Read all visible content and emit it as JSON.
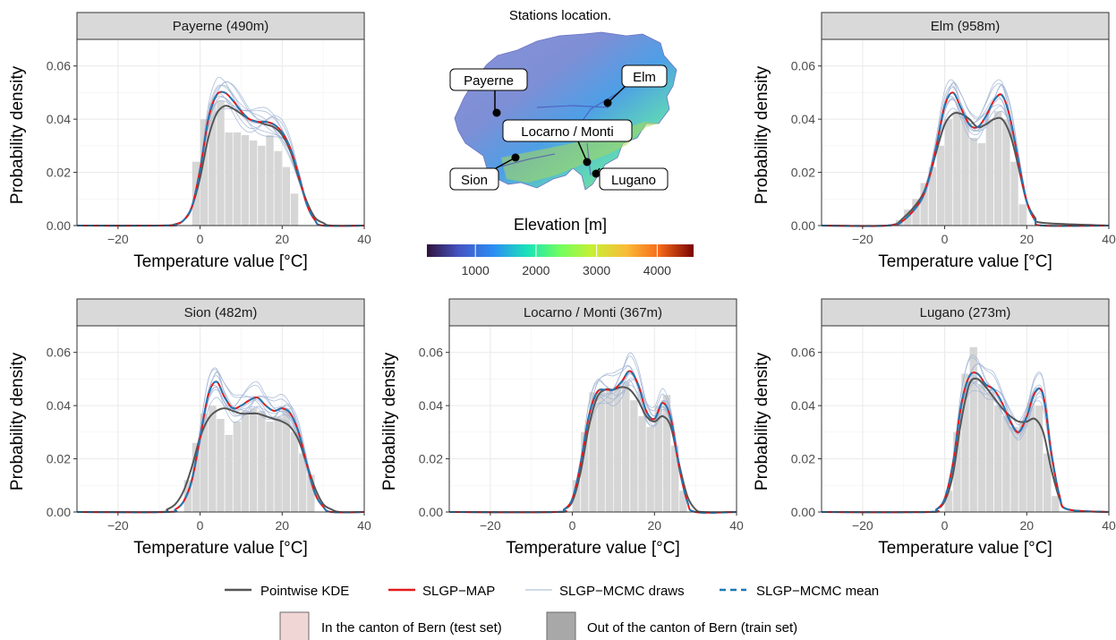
{
  "colors": {
    "kde": "#555555",
    "map": "#e31a1c",
    "draws": "#9fb3d3",
    "mean": "#1f78b4",
    "hist_train": "#d6d6d6",
    "test_fill": "#f0d6d4",
    "strip": "#d9d9d9",
    "grid": "#ebebeb"
  },
  "legend": {
    "kde": "Pointwise KDE",
    "map": "SLGP−MAP",
    "draws": "SLGP−MCMC draws",
    "mean": "SLGP−MCMC mean",
    "test": "In the canton of Bern (test set)",
    "train": "Out of the canton of Bern (train set)"
  },
  "map_panel": {
    "title": "Stations location.",
    "colorbar_title": "Elevation [m]",
    "colorbar_ticks": [
      "1000",
      "2000",
      "3000",
      "4000"
    ],
    "colorbar_range": [
      200,
      4600
    ],
    "stations": [
      "Payerne",
      "Elm",
      "Locarno / Monti",
      "Sion",
      "Lugano"
    ]
  },
  "chart_data": [
    {
      "type": "line",
      "title": "Payerne (490m)",
      "xlabel": "Temperature value [°C]",
      "ylabel": "Probability density",
      "xlim": [
        -30,
        40
      ],
      "ylim": [
        0,
        0.07
      ],
      "xticks": [
        -20,
        0,
        20,
        40
      ],
      "yticks": [
        "0.00",
        "0.02",
        "0.04",
        "0.06"
      ],
      "hist": {
        "bin_width": 2,
        "bins": [
          [
            -1,
            0.024
          ],
          [
            1,
            0.04
          ],
          [
            3,
            0.046
          ],
          [
            5,
            0.047
          ],
          [
            7,
            0.035
          ],
          [
            9,
            0.035
          ],
          [
            11,
            0.034
          ],
          [
            13,
            0.032
          ],
          [
            15,
            0.03
          ],
          [
            17,
            0.034
          ],
          [
            19,
            0.028
          ],
          [
            21,
            0.022
          ],
          [
            23,
            0.012
          ]
        ]
      },
      "series": [
        {
          "name": "Pointwise KDE",
          "x": [
            -30,
            -10,
            -6,
            -4,
            -2,
            0,
            2,
            4,
            6,
            8,
            10,
            12,
            14,
            16,
            18,
            20,
            22,
            24,
            26,
            28,
            30,
            32,
            40
          ],
          "y": [
            0,
            0,
            0.0005,
            0.002,
            0.007,
            0.018,
            0.033,
            0.042,
            0.045,
            0.044,
            0.042,
            0.04,
            0.039,
            0.038,
            0.037,
            0.034,
            0.028,
            0.018,
            0.009,
            0.003,
            0.001,
            0,
            0
          ]
        },
        {
          "name": "SLGP−MAP",
          "x": [
            -30,
            -8,
            -6,
            -4,
            -2,
            0,
            2,
            4,
            6,
            8,
            10,
            12,
            14,
            16,
            18,
            20,
            22,
            24,
            26,
            28,
            30,
            40
          ],
          "y": [
            0,
            0,
            0.0005,
            0.002,
            0.007,
            0.021,
            0.04,
            0.049,
            0.05,
            0.047,
            0.043,
            0.04,
            0.039,
            0.039,
            0.038,
            0.035,
            0.029,
            0.019,
            0.008,
            0.002,
            0,
            0
          ]
        }
      ]
    },
    {
      "type": "line",
      "title": "Elm (958m)",
      "xlabel": "Temperature value [°C]",
      "ylabel": "Probability density",
      "xlim": [
        -30,
        40
      ],
      "ylim": [
        0,
        0.07
      ],
      "xticks": [
        -20,
        0,
        20,
        40
      ],
      "yticks": [
        "0.00",
        "0.02",
        "0.04",
        "0.06"
      ],
      "hist": {
        "bin_width": 2,
        "bins": [
          [
            -11,
            0.002
          ],
          [
            -9,
            0.006
          ],
          [
            -7,
            0.01
          ],
          [
            -5,
            0.016
          ],
          [
            -3,
            0.022
          ],
          [
            -1,
            0.03
          ],
          [
            1,
            0.04
          ],
          [
            3,
            0.043
          ],
          [
            5,
            0.041
          ],
          [
            7,
            0.033
          ],
          [
            9,
            0.031
          ],
          [
            11,
            0.04
          ],
          [
            13,
            0.043
          ],
          [
            15,
            0.04
          ],
          [
            17,
            0.024
          ],
          [
            19,
            0.008
          ]
        ]
      },
      "series": [
        {
          "name": "Pointwise KDE",
          "x": [
            -30,
            -14,
            -10,
            -6,
            -4,
            -2,
            0,
            2,
            4,
            6,
            8,
            10,
            12,
            14,
            16,
            18,
            20,
            22,
            24,
            40
          ],
          "y": [
            0,
            0,
            0.003,
            0.01,
            0.017,
            0.028,
            0.038,
            0.042,
            0.042,
            0.04,
            0.037,
            0.038,
            0.04,
            0.04,
            0.034,
            0.022,
            0.009,
            0.003,
            0.001,
            0
          ]
        },
        {
          "name": "SLGP−MAP",
          "x": [
            -30,
            -14,
            -10,
            -6,
            -4,
            -2,
            0,
            2,
            4,
            6,
            8,
            10,
            12,
            14,
            16,
            18,
            20,
            22,
            24,
            40
          ],
          "y": [
            0,
            0,
            0.002,
            0.009,
            0.017,
            0.03,
            0.045,
            0.05,
            0.044,
            0.038,
            0.037,
            0.041,
            0.047,
            0.049,
            0.04,
            0.024,
            0.009,
            0.002,
            0,
            0
          ]
        }
      ]
    },
    {
      "type": "line",
      "title": "Sion (482m)",
      "xlabel": "Temperature value [°C]",
      "ylabel": "Probability density",
      "xlim": [
        -30,
        40
      ],
      "ylim": [
        0,
        0.07
      ],
      "xticks": [
        -20,
        0,
        20,
        40
      ],
      "yticks": [
        "0.00",
        "0.02",
        "0.04",
        "0.06"
      ],
      "hist": {
        "bin_width": 2,
        "bins": [
          [
            -3,
            0.012
          ],
          [
            -1,
            0.026
          ],
          [
            1,
            0.037
          ],
          [
            3,
            0.04
          ],
          [
            5,
            0.035
          ],
          [
            7,
            0.029
          ],
          [
            9,
            0.034
          ],
          [
            11,
            0.038
          ],
          [
            13,
            0.039
          ],
          [
            15,
            0.038
          ],
          [
            17,
            0.034
          ],
          [
            19,
            0.036
          ],
          [
            21,
            0.039
          ],
          [
            23,
            0.03
          ],
          [
            25,
            0.022
          ],
          [
            27,
            0.014
          ]
        ]
      },
      "series": [
        {
          "name": "Pointwise KDE",
          "x": [
            -30,
            -10,
            -8,
            -6,
            -4,
            -2,
            0,
            2,
            4,
            6,
            8,
            10,
            12,
            14,
            16,
            18,
            20,
            22,
            24,
            26,
            28,
            30,
            32,
            34,
            40
          ],
          "y": [
            0,
            0,
            0.001,
            0.003,
            0.008,
            0.017,
            0.028,
            0.035,
            0.038,
            0.039,
            0.038,
            0.037,
            0.037,
            0.037,
            0.036,
            0.035,
            0.034,
            0.032,
            0.027,
            0.018,
            0.009,
            0.003,
            0.001,
            0,
            0
          ]
        },
        {
          "name": "SLGP−MAP",
          "x": [
            -30,
            -8,
            -6,
            -4,
            -2,
            0,
            2,
            4,
            6,
            8,
            10,
            12,
            14,
            16,
            18,
            20,
            22,
            24,
            26,
            28,
            30,
            32,
            40
          ],
          "y": [
            0,
            0,
            0.001,
            0.004,
            0.012,
            0.028,
            0.044,
            0.049,
            0.043,
            0.039,
            0.04,
            0.042,
            0.043,
            0.04,
            0.038,
            0.039,
            0.037,
            0.03,
            0.018,
            0.007,
            0.002,
            0,
            0
          ]
        }
      ]
    },
    {
      "type": "line",
      "title": "Locarno / Monti (367m)",
      "xlabel": "Temperature value [°C]",
      "ylabel": "Probability density",
      "xlim": [
        -30,
        40
      ],
      "ylim": [
        0,
        0.07
      ],
      "xticks": [
        -20,
        0,
        20,
        40
      ],
      "yticks": [
        "0.00",
        "0.02",
        "0.04",
        "0.06"
      ],
      "hist": {
        "bin_width": 2,
        "bins": [
          [
            1,
            0.012
          ],
          [
            3,
            0.03
          ],
          [
            5,
            0.045
          ],
          [
            7,
            0.046
          ],
          [
            9,
            0.046
          ],
          [
            11,
            0.047
          ],
          [
            13,
            0.049
          ],
          [
            15,
            0.042
          ],
          [
            17,
            0.036
          ],
          [
            19,
            0.032
          ],
          [
            21,
            0.04
          ],
          [
            23,
            0.044
          ],
          [
            25,
            0.025
          ],
          [
            27,
            0.008
          ]
        ]
      },
      "series": [
        {
          "name": "Pointwise KDE",
          "x": [
            -30,
            -4,
            -2,
            0,
            2,
            4,
            6,
            8,
            10,
            12,
            14,
            16,
            18,
            20,
            22,
            24,
            26,
            28,
            30,
            32,
            40
          ],
          "y": [
            0,
            0,
            0.001,
            0.004,
            0.015,
            0.032,
            0.043,
            0.046,
            0.046,
            0.047,
            0.046,
            0.042,
            0.036,
            0.034,
            0.036,
            0.032,
            0.018,
            0.006,
            0.001,
            0,
            0
          ]
        },
        {
          "name": "SLGP−MAP",
          "x": [
            -30,
            -4,
            -2,
            0,
            2,
            4,
            6,
            8,
            10,
            12,
            14,
            16,
            18,
            20,
            22,
            24,
            26,
            28,
            30,
            40
          ],
          "y": [
            0,
            0,
            0.001,
            0.005,
            0.018,
            0.036,
            0.045,
            0.046,
            0.046,
            0.049,
            0.053,
            0.048,
            0.038,
            0.035,
            0.041,
            0.035,
            0.017,
            0.004,
            0,
            0
          ]
        }
      ]
    },
    {
      "type": "line",
      "title": "Lugano (273m)",
      "xlabel": "Temperature value [°C]",
      "ylabel": "Probability density",
      "xlim": [
        -30,
        40
      ],
      "ylim": [
        0,
        0.07
      ],
      "xticks": [
        -20,
        0,
        20,
        40
      ],
      "yticks": [
        "0.00",
        "0.02",
        "0.04",
        "0.06"
      ],
      "hist": {
        "bin_width": 2,
        "bins": [
          [
            1,
            0.008
          ],
          [
            3,
            0.03
          ],
          [
            5,
            0.052
          ],
          [
            7,
            0.062
          ],
          [
            9,
            0.048
          ],
          [
            11,
            0.045
          ],
          [
            13,
            0.04
          ],
          [
            15,
            0.036
          ],
          [
            17,
            0.032
          ],
          [
            19,
            0.034
          ],
          [
            21,
            0.041
          ],
          [
            23,
            0.04
          ],
          [
            25,
            0.022
          ],
          [
            27,
            0.006
          ]
        ]
      },
      "series": [
        {
          "name": "Pointwise KDE",
          "x": [
            -30,
            -4,
            -2,
            0,
            2,
            4,
            6,
            8,
            10,
            12,
            14,
            16,
            18,
            20,
            22,
            24,
            26,
            28,
            30,
            40
          ],
          "y": [
            0,
            0,
            0.001,
            0.004,
            0.014,
            0.034,
            0.048,
            0.05,
            0.047,
            0.043,
            0.039,
            0.036,
            0.034,
            0.034,
            0.035,
            0.03,
            0.016,
            0.005,
            0.001,
            0
          ]
        },
        {
          "name": "SLGP−MAP",
          "x": [
            -30,
            -4,
            -2,
            0,
            2,
            4,
            6,
            8,
            10,
            12,
            14,
            16,
            18,
            20,
            22,
            24,
            26,
            28,
            30,
            40
          ],
          "y": [
            0,
            0,
            0.001,
            0.005,
            0.018,
            0.04,
            0.051,
            0.052,
            0.048,
            0.046,
            0.041,
            0.034,
            0.03,
            0.036,
            0.045,
            0.044,
            0.022,
            0.006,
            0.001,
            0
          ]
        }
      ]
    }
  ]
}
